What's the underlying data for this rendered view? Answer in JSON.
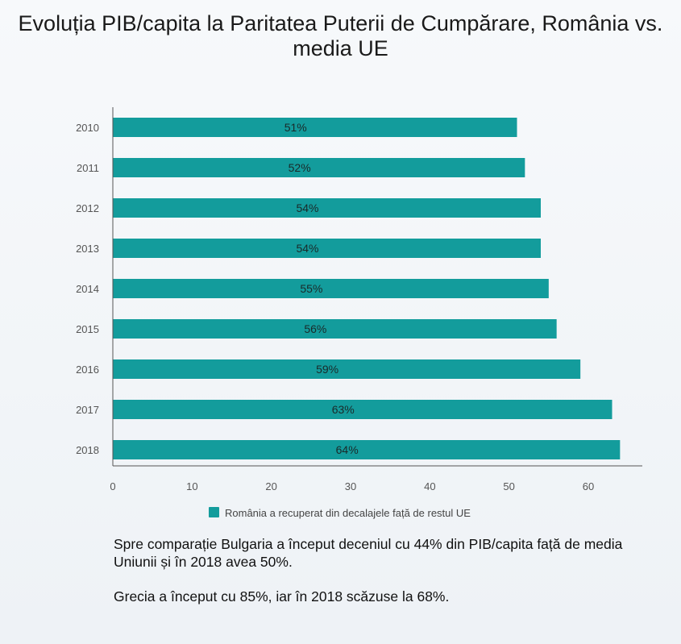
{
  "chart_data": {
    "type": "bar",
    "orientation": "horizontal",
    "title": "Evoluția PIB/capita la Paritatea Puterii de Cumpărare, România vs. media UE",
    "categories": [
      "2010",
      "2011",
      "2012",
      "2013",
      "2014",
      "2015",
      "2016",
      "2017",
      "2018"
    ],
    "series": [
      {
        "name": "România a recuperat din decalajele față de restul UE",
        "values": [
          51,
          52,
          54,
          54,
          55,
          56,
          59,
          63,
          64
        ],
        "color": "#139c9c"
      }
    ],
    "data_labels": [
      "51%",
      "52%",
      "54%",
      "54%",
      "55%",
      "56%",
      "59%",
      "63%",
      "64%"
    ],
    "xticks": [
      0,
      10,
      20,
      30,
      40,
      50,
      60
    ],
    "xlim": [
      0,
      67
    ],
    "grid": false,
    "legend_position": "bottom"
  },
  "notes": [
    "Spre comparație Bulgaria a început deceniul cu 44% din PIB/capita față de media Uniunii și în 2018 avea 50%.",
    "Grecia a început cu 85%, iar în 2018 scăzuse la 68%."
  ]
}
